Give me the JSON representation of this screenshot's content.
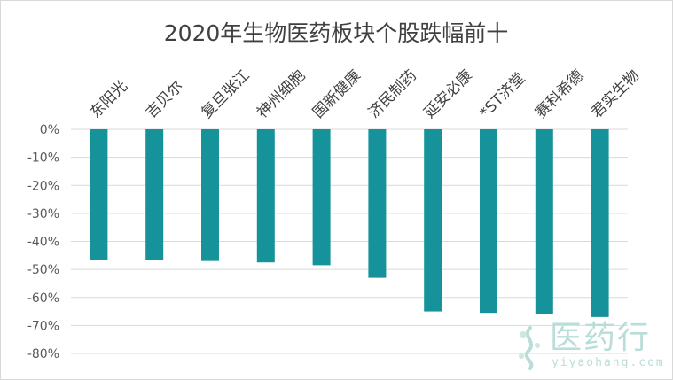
{
  "chart_data": {
    "type": "bar",
    "title": "2020年生物医药板块个股跌幅前十",
    "xlabel": "",
    "ylabel": "",
    "categories": [
      "东阳光",
      "吉贝尔",
      "复旦张江",
      "神州细胞",
      "国新健康",
      "济民制药",
      "延安必康",
      "*ST济堂",
      "赛科希德",
      "君实生物"
    ],
    "values": [
      -46.5,
      -46.5,
      -47.0,
      -47.5,
      -48.5,
      -53.0,
      -65.0,
      -65.5,
      -66.0,
      -67.0
    ],
    "ylim": [
      -80,
      0
    ],
    "yticks": [
      0,
      -10,
      -20,
      -30,
      -40,
      -50,
      -60,
      -70,
      -80
    ],
    "ytick_labels": [
      "0%",
      "-10%",
      "-20%",
      "-30%",
      "-40%",
      "-50%",
      "-60%",
      "-70%",
      "-80%"
    ],
    "grid": true,
    "bar_color": "#16939a",
    "x_labels_position": "top"
  },
  "watermark": {
    "text": "医药行",
    "subtext": "yiyaohang.com",
    "color": "#b9ddd8"
  }
}
